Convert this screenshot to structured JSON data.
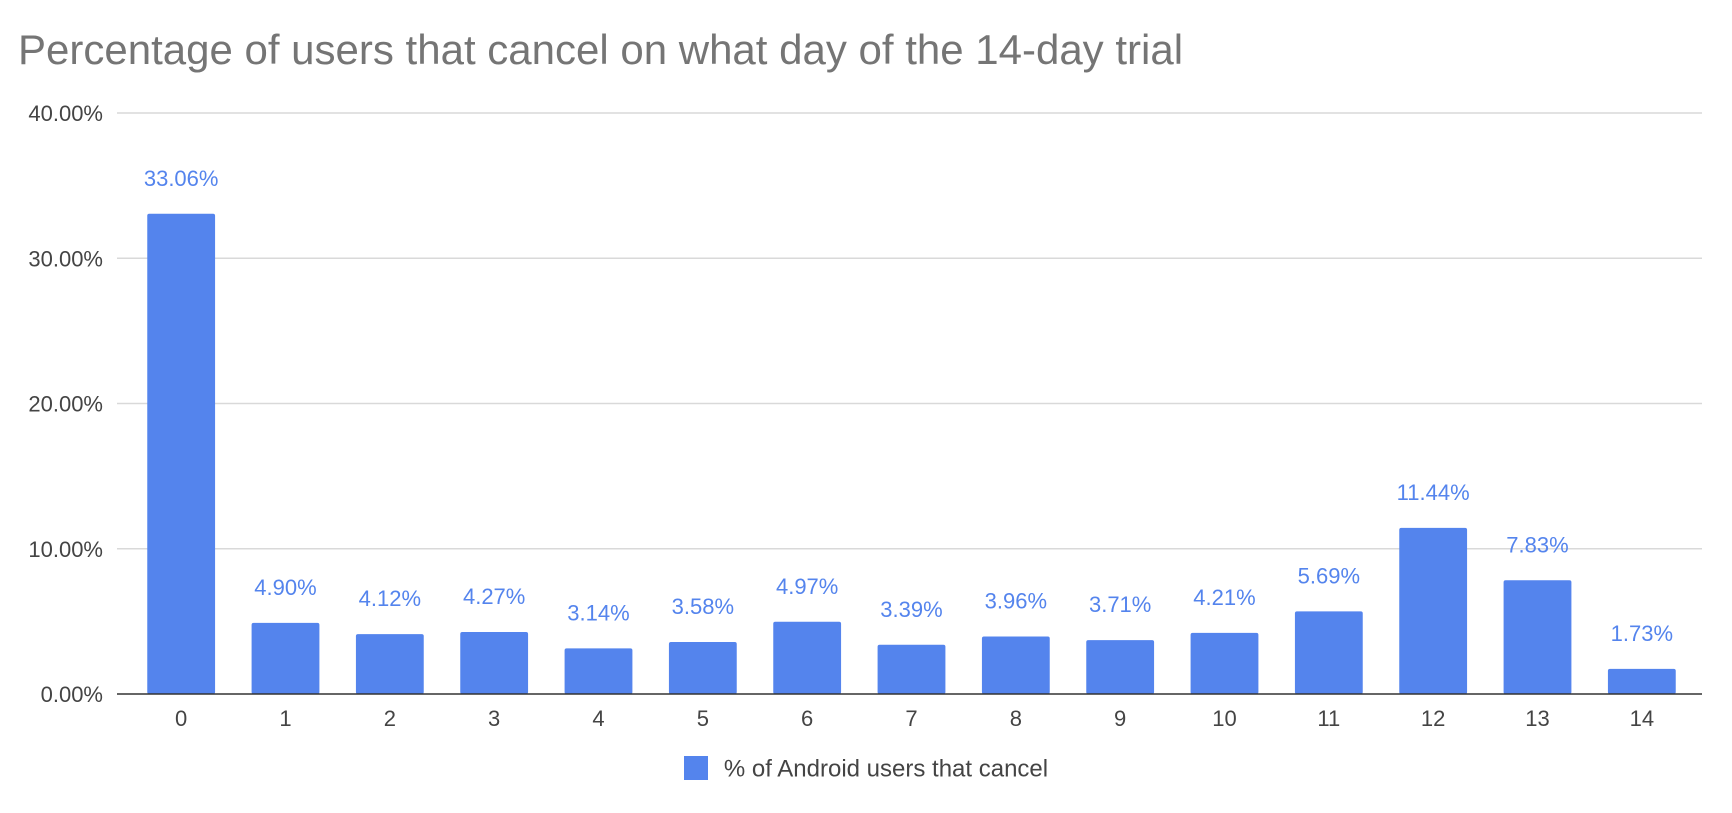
{
  "chart_data": {
    "type": "bar",
    "title": "Percentage of users that cancel on what day of the 14-day trial",
    "xlabel": "",
    "ylabel": "",
    "categories": [
      "0",
      "1",
      "2",
      "3",
      "4",
      "5",
      "6",
      "7",
      "8",
      "9",
      "10",
      "11",
      "12",
      "13",
      "14"
    ],
    "series": [
      {
        "name": "% of Android users that cancel",
        "values": [
          33.06,
          4.9,
          4.12,
          4.27,
          3.14,
          3.58,
          4.97,
          3.39,
          3.96,
          3.71,
          4.21,
          5.69,
          11.44,
          7.83,
          1.73
        ],
        "data_labels": [
          "33.06%",
          "4.90%",
          "4.12%",
          "4.27%",
          "3.14%",
          "3.58%",
          "4.97%",
          "3.39%",
          "3.96%",
          "3.71%",
          "4.21%",
          "5.69%",
          "11.44%",
          "7.83%",
          "1.73%"
        ]
      }
    ],
    "ylim": [
      0,
      40
    ],
    "yticks": [
      0,
      10,
      20,
      30,
      40
    ],
    "ytick_labels": [
      "0.00%",
      "10.00%",
      "20.00%",
      "30.00%",
      "40.00%"
    ],
    "grid": true,
    "legend_position": "bottom",
    "colors": {
      "bar": "#5484ED",
      "data_label": "#5484ED",
      "grid": "#d9d9d9",
      "axis": "#333333",
      "title": "#757575",
      "tick_label": "#444444"
    }
  }
}
